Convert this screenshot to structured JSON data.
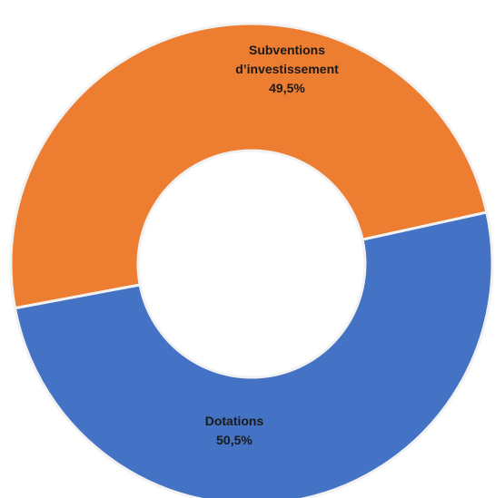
{
  "chart_data": {
    "type": "pie",
    "subtype": "donut",
    "slices": [
      {
        "label_lines": [
          "Subventions",
          "d’investissement"
        ],
        "value": 49.5,
        "value_label": "49,5%",
        "color": "#ED7D31"
      },
      {
        "label_lines": [
          "Dotations"
        ],
        "value": 50.5,
        "value_label": "50,5%",
        "color": "#4472C4"
      }
    ],
    "separator_color": "#F2F2F2",
    "legend": "none"
  }
}
